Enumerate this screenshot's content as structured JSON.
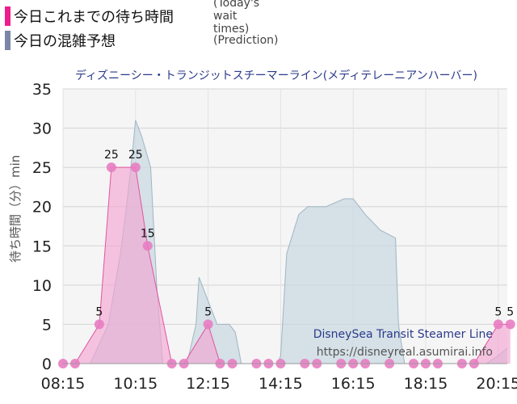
{
  "legend": {
    "today": {
      "label": "今日これまでの待ち時間",
      "sub": "(Today's wait times)",
      "color": "#ee1e8c"
    },
    "prediction": {
      "label": "今日の混雑予想",
      "sub": "(Prediction)",
      "color": "#7a86a8"
    }
  },
  "chart_data": {
    "type": "area",
    "title": "ディズニーシー・トランジットスチーマーライン(メディテレーニアンハーバー)",
    "ylabel": "待ち時間（分）min",
    "xlabel": "",
    "ylim": [
      0,
      35
    ],
    "yticks": [
      0,
      5,
      10,
      15,
      20,
      25,
      30,
      35
    ],
    "xlim": [
      "08:15",
      "20:30"
    ],
    "xticks": [
      "08:15",
      "10:15",
      "12:15",
      "14:15",
      "16:15",
      "18:15",
      "20:15"
    ],
    "grid": true,
    "watermark": {
      "line1": "DisneySea Transit Steamer Line",
      "line2": "https://disneyreal.asumirai.info"
    },
    "series": [
      {
        "name": "今日の混雑予想",
        "kind": "prediction",
        "fill": "#c9d8e2",
        "stroke": "#9fb6c4",
        "points": [
          [
            "08:15",
            0
          ],
          [
            "09:00",
            0
          ],
          [
            "09:30",
            5
          ],
          [
            "09:50",
            14
          ],
          [
            "10:00",
            20
          ],
          [
            "10:10",
            27
          ],
          [
            "10:15",
            31
          ],
          [
            "10:25",
            29
          ],
          [
            "10:40",
            25
          ],
          [
            "10:50",
            10
          ],
          [
            "11:00",
            0
          ],
          [
            "11:40",
            0
          ],
          [
            "11:55",
            5
          ],
          [
            "12:00",
            11
          ],
          [
            "12:15",
            8
          ],
          [
            "12:30",
            5
          ],
          [
            "12:50",
            5
          ],
          [
            "13:00",
            4
          ],
          [
            "13:10",
            0
          ],
          [
            "14:10",
            0
          ],
          [
            "14:15",
            1
          ],
          [
            "14:25",
            14
          ],
          [
            "14:45",
            19
          ],
          [
            "15:00",
            20
          ],
          [
            "15:30",
            20
          ],
          [
            "16:00",
            21
          ],
          [
            "16:15",
            21
          ],
          [
            "16:35",
            19
          ],
          [
            "17:00",
            17
          ],
          [
            "17:25",
            16
          ],
          [
            "17:30",
            5
          ],
          [
            "17:40",
            0
          ],
          [
            "19:30",
            0
          ],
          [
            "19:55",
            0
          ],
          [
            "20:15",
            1
          ],
          [
            "20:30",
            2
          ]
        ]
      },
      {
        "name": "今日これまでの待ち時間",
        "kind": "today",
        "fill": "#f2a6d2",
        "stroke": "#e0559e",
        "marker": "#e87dc2",
        "points": [
          [
            "08:15",
            0
          ],
          [
            "08:35",
            0
          ],
          [
            "09:15",
            5
          ],
          [
            "09:35",
            25
          ],
          [
            "10:15",
            25
          ],
          [
            "10:35",
            15
          ],
          [
            "11:15",
            0
          ],
          [
            "11:35",
            0
          ],
          [
            "12:15",
            5
          ],
          [
            "12:35",
            0
          ],
          [
            "12:55",
            0
          ],
          [
            "13:35",
            0
          ],
          [
            "13:55",
            0
          ],
          [
            "14:15",
            0
          ],
          [
            "14:55",
            0
          ],
          [
            "15:15",
            0
          ],
          [
            "15:55",
            0
          ],
          [
            "16:15",
            0
          ],
          [
            "16:35",
            0
          ],
          [
            "17:15",
            0
          ],
          [
            "17:55",
            0
          ],
          [
            "18:15",
            0
          ],
          [
            "18:35",
            0
          ],
          [
            "19:15",
            0
          ],
          [
            "19:35",
            0
          ],
          [
            "20:15",
            5
          ],
          [
            "20:35",
            5
          ]
        ],
        "labeled": [
          {
            "t": "09:15",
            "text": "5"
          },
          {
            "t": "09:35",
            "text": "25"
          },
          {
            "t": "10:15",
            "text": "25"
          },
          {
            "t": "10:35",
            "text": "15"
          },
          {
            "t": "12:15",
            "text": "5"
          },
          {
            "t": "20:15",
            "text": "5"
          },
          {
            "t": "20:35",
            "text": "5"
          }
        ]
      }
    ]
  }
}
